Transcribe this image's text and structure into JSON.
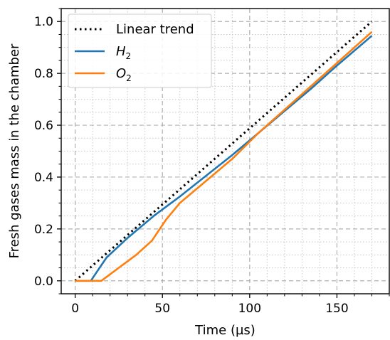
{
  "chart_data": {
    "type": "line",
    "xlabel": "Time (µs)",
    "ylabel": "Fresh gases mass in the chamber",
    "xlim": [
      -8,
      180
    ],
    "ylim": [
      -0.05,
      1.05
    ],
    "x_ticks": [
      0,
      50,
      100,
      150
    ],
    "x_tick_labels": [
      "0",
      "50",
      "100",
      "150"
    ],
    "y_ticks": [
      0.0,
      0.2,
      0.4,
      0.6,
      0.8,
      1.0
    ],
    "y_tick_labels": [
      "0.0",
      "0.2",
      "0.4",
      "0.6",
      "0.8",
      "1.0"
    ],
    "grid": {
      "major": "dashed",
      "minor": "dotted"
    },
    "legend_position": "top-left",
    "series": [
      {
        "name": "Linear trend",
        "style": "dotted",
        "color": "#000000",
        "x": [
          0,
          170
        ],
        "y": [
          0.0,
          1.0
        ]
      },
      {
        "name": "H",
        "name_subscript": "2",
        "style": "solid",
        "color": "#1f77b4",
        "x": [
          0,
          9,
          12,
          18,
          30,
          45,
          60,
          75,
          90,
          105,
          120,
          135,
          150,
          170
        ],
        "y": [
          0.0,
          0.0,
          0.03,
          0.09,
          0.165,
          0.25,
          0.325,
          0.405,
          0.485,
          0.57,
          0.655,
          0.74,
          0.83,
          0.945
        ]
      },
      {
        "name": "O",
        "name_subscript": "2",
        "style": "solid",
        "color": "#ff7f0e",
        "x": [
          0,
          15,
          25,
          35,
          44,
          52,
          60,
          75,
          90,
          105,
          120,
          135,
          150,
          170
        ],
        "y": [
          0.0,
          0.0,
          0.05,
          0.1,
          0.155,
          0.235,
          0.3,
          0.385,
          0.47,
          0.57,
          0.66,
          0.75,
          0.84,
          0.96
        ]
      }
    ]
  }
}
